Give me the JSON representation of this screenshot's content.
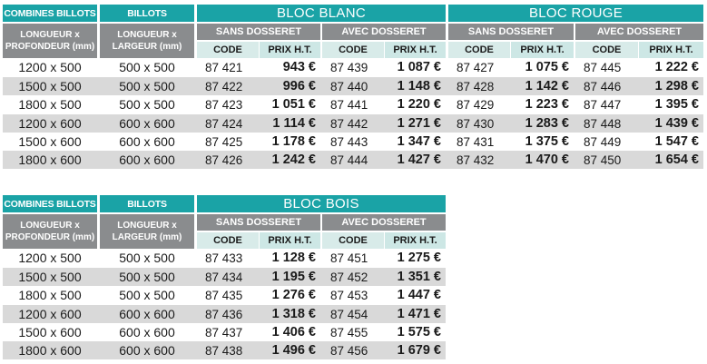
{
  "table1": {
    "headers": {
      "combines_billots": "COMBINES BILLOTS",
      "billots": "BILLOTS",
      "longueur_x": "LONGUEUR x",
      "profondeur": "PROFONDEUR (mm)",
      "longueur_x2": "LONGUEUR x",
      "largeur": "LARGEUR (mm)",
      "bloc_blanc": "BLOC BLANC",
      "bloc_rouge": "BLOC ROUGE",
      "sans_dosseret": "SANS DOSSERET",
      "avec_dosseret": "AVEC DOSSERET",
      "code": "CODE",
      "prix": "PRIX H.T."
    },
    "rows": [
      {
        "dim1": "1200 x 500",
        "dim2": "500 x 500",
        "c1": "87 421",
        "p1": "943 €",
        "c2": "87 439",
        "p2": "1 087 €",
        "c3": "87 427",
        "p3": "1 075 €",
        "c4": "87 445",
        "p4": "1 222 €"
      },
      {
        "dim1": "1500 x 500",
        "dim2": "500 x 500",
        "c1": "87 422",
        "p1": "996 €",
        "c2": "87 440",
        "p2": "1 148 €",
        "c3": "87 428",
        "p3": "1 142 €",
        "c4": "87 446",
        "p4": "1 298 €"
      },
      {
        "dim1": "1800 x 500",
        "dim2": "500 x 500",
        "c1": "87 423",
        "p1": "1 051 €",
        "c2": "87 441",
        "p2": "1 220 €",
        "c3": "87 429",
        "p3": "1 223 €",
        "c4": "87 447",
        "p4": "1 395 €"
      },
      {
        "dim1": "1200 x 600",
        "dim2": "600 x 600",
        "c1": "87 424",
        "p1": "1 114 €",
        "c2": "87 442",
        "p2": "1 271 €",
        "c3": "87 430",
        "p3": "1 283 €",
        "c4": "87 448",
        "p4": "1 439 €"
      },
      {
        "dim1": "1500 x 600",
        "dim2": "600 x 600",
        "c1": "87 425",
        "p1": "1 178 €",
        "c2": "87 443",
        "p2": "1 347 €",
        "c3": "87 431",
        "p3": "1 375 €",
        "c4": "87 449",
        "p4": "1 547 €"
      },
      {
        "dim1": "1800 x 600",
        "dim2": "600 x 600",
        "c1": "87 426",
        "p1": "1 242 €",
        "c2": "87 444",
        "p2": "1 427 €",
        "c3": "87 432",
        "p3": "1 470 €",
        "c4": "87 450",
        "p4": "1 654 €"
      }
    ]
  },
  "table2": {
    "headers": {
      "combines_billots": "COMBINES BILLOTS",
      "billots": "BILLOTS",
      "longueur_x": "LONGUEUR x",
      "profondeur": "PROFONDEUR (mm)",
      "longueur_x2": "LONGUEUR x",
      "largeur": "LARGEUR (mm)",
      "bloc_bois": "BLOC BOIS",
      "sans_dosseret": "SANS DOSSERET",
      "avec_dosseret": "AVEC DOSSERET",
      "code": "CODE",
      "prix": "PRIX H.T."
    },
    "rows": [
      {
        "dim1": "1200 x 500",
        "dim2": "500 x 500",
        "c1": "87 433",
        "p1": "1 128 €",
        "c2": "87 451",
        "p2": "1 275 €"
      },
      {
        "dim1": "1500 x 500",
        "dim2": "500 x 500",
        "c1": "87 434",
        "p1": "1 195 €",
        "c2": "87 452",
        "p2": "1 351 €"
      },
      {
        "dim1": "1800 x 500",
        "dim2": "500 x 500",
        "c1": "87 435",
        "p1": "1 276 €",
        "c2": "87 453",
        "p2": "1 447 €"
      },
      {
        "dim1": "1200 x 600",
        "dim2": "600 x 600",
        "c1": "87 436",
        "p1": "1 318 €",
        "c2": "87 454",
        "p2": "1 471 €"
      },
      {
        "dim1": "1500 x 600",
        "dim2": "600 x 600",
        "c1": "87 437",
        "p1": "1 406 €",
        "c2": "87 455",
        "p2": "1 575 €"
      },
      {
        "dim1": "1800 x 600",
        "dim2": "600 x 600",
        "c1": "87 438",
        "p1": "1 496 €",
        "c2": "87 456",
        "p2": "1 679 €"
      }
    ]
  }
}
